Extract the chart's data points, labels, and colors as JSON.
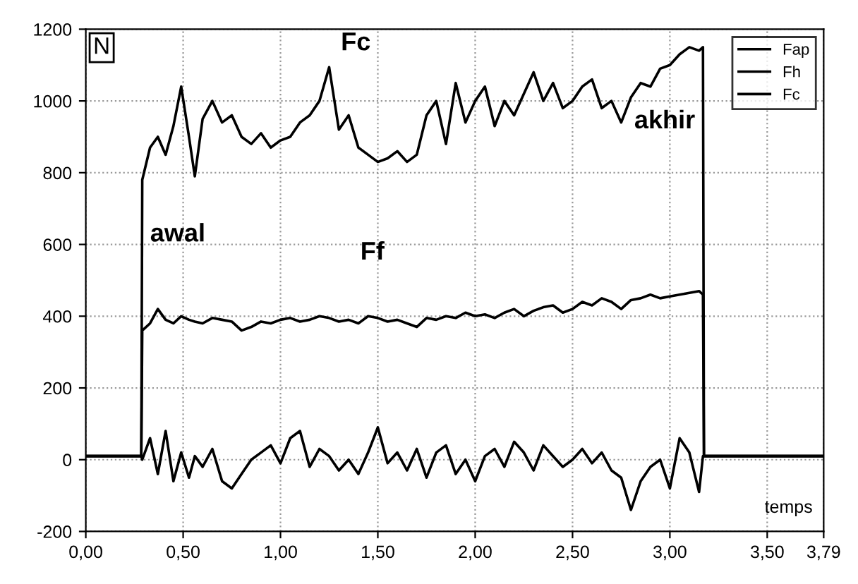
{
  "chart_data": {
    "type": "line",
    "xlabel": "temps",
    "ylabel": "N",
    "x": [
      0,
      0.285,
      0.29,
      0.33,
      0.37,
      0.41,
      0.45,
      0.49,
      0.53,
      0.56,
      0.6,
      0.65,
      0.7,
      0.75,
      0.8,
      0.85,
      0.9,
      0.95,
      1.0,
      1.05,
      1.1,
      1.15,
      1.2,
      1.25,
      1.3,
      1.35,
      1.4,
      1.45,
      1.5,
      1.55,
      1.6,
      1.65,
      1.7,
      1.75,
      1.8,
      1.85,
      1.9,
      1.95,
      2.0,
      2.05,
      2.1,
      2.15,
      2.2,
      2.25,
      2.3,
      2.35,
      2.4,
      2.45,
      2.5,
      2.55,
      2.6,
      2.65,
      2.7,
      2.75,
      2.8,
      2.85,
      2.9,
      2.95,
      3.0,
      3.05,
      3.1,
      3.15,
      3.17,
      3.175,
      3.79
    ],
    "series": [
      {
        "name": "Fap",
        "color": "#000000",
        "values": [
          10,
          10,
          0,
          60,
          -40,
          80,
          -60,
          20,
          -50,
          10,
          -20,
          30,
          -60,
          -80,
          -40,
          0,
          20,
          40,
          -10,
          60,
          80,
          -20,
          30,
          10,
          -30,
          0,
          -40,
          20,
          90,
          -10,
          20,
          -30,
          30,
          -50,
          20,
          40,
          -40,
          0,
          -60,
          10,
          30,
          -20,
          50,
          20,
          -30,
          40,
          10,
          -20,
          0,
          30,
          -10,
          20,
          -30,
          -50,
          -140,
          -60,
          -20,
          0,
          -80,
          60,
          20,
          -90,
          10,
          10,
          10
        ]
      },
      {
        "name": "Fh",
        "color": "#000000",
        "values": [
          10,
          10,
          360,
          380,
          420,
          390,
          380,
          400,
          390,
          385,
          380,
          395,
          390,
          385,
          360,
          370,
          385,
          380,
          390,
          395,
          385,
          390,
          400,
          395,
          385,
          390,
          380,
          400,
          395,
          385,
          390,
          380,
          370,
          395,
          390,
          400,
          395,
          410,
          400,
          405,
          395,
          410,
          420,
          400,
          415,
          425,
          430,
          410,
          420,
          440,
          430,
          450,
          440,
          420,
          445,
          450,
          460,
          450,
          455,
          460,
          465,
          470,
          460,
          10,
          10
        ]
      },
      {
        "name": "Fc",
        "color": "#000000",
        "values": [
          10,
          10,
          780,
          870,
          900,
          850,
          930,
          1040,
          900,
          790,
          950,
          1000,
          940,
          960,
          900,
          880,
          910,
          870,
          890,
          900,
          940,
          960,
          1000,
          1094,
          920,
          960,
          870,
          850,
          830,
          840,
          860,
          830,
          850,
          960,
          1000,
          880,
          1050,
          940,
          1000,
          1040,
          930,
          1000,
          960,
          1020,
          1080,
          1000,
          1050,
          980,
          1000,
          1040,
          1060,
          980,
          1000,
          940,
          1010,
          1050,
          1040,
          1090,
          1100,
          1130,
          1150,
          1140,
          1150,
          10,
          10
        ]
      }
    ],
    "xlim": [
      0,
      3.79
    ],
    "ylim": [
      -200,
      1200
    ],
    "xticks": [
      {
        "value": 0,
        "label": "0,00"
      },
      {
        "value": 0.5,
        "label": "0,50"
      },
      {
        "value": 1.0,
        "label": "1,00"
      },
      {
        "value": 1.5,
        "label": "1,50"
      },
      {
        "value": 2.0,
        "label": "2,00"
      },
      {
        "value": 2.5,
        "label": "2,50"
      },
      {
        "value": 3.0,
        "label": "3,00"
      },
      {
        "value": 3.5,
        "label": "3,50"
      },
      {
        "value": 3.79,
        "label": "3,79"
      }
    ],
    "yticks": [
      -200,
      0,
      200,
      400,
      600,
      800,
      1000,
      1200
    ],
    "annotations": [
      {
        "text": "Fc",
        "x": 1.25,
        "y": 1094
      },
      {
        "text": "Ff",
        "x": 1.35,
        "y": 390
      },
      {
        "text": "awal",
        "x": 0.29,
        "y": 780
      },
      {
        "text": "akhir",
        "x": 3.17,
        "y": 1150
      }
    ],
    "grid": true,
    "legend": "top right",
    "marker": "none",
    "line_style": "solid"
  }
}
